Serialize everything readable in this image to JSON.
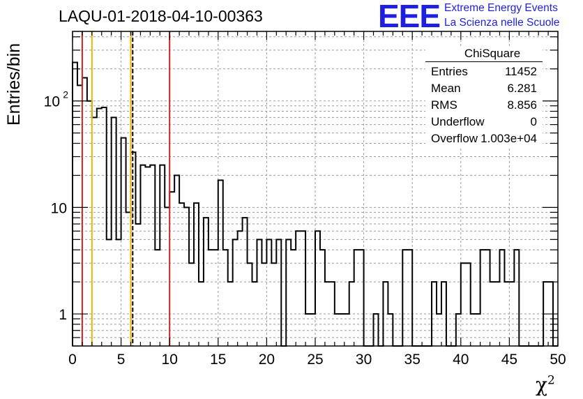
{
  "header": {
    "title": "LAQU-01-2018-04-10-00363",
    "logo_text": "EEE",
    "logo_line1": "Extreme Energy Events",
    "logo_line2": "La Scienza nelle Scuole",
    "logo_color": "#1f1fe0"
  },
  "stats_box": {
    "title": "ChiSquare",
    "rows": [
      {
        "key": "Entries",
        "value": "11452"
      },
      {
        "key": "Mean",
        "value": "6.281"
      },
      {
        "key": "RMS",
        "value": "8.856"
      },
      {
        "key": "Underflow",
        "value": "0"
      },
      {
        "key": "Overflow",
        "value": "1.003e+04"
      }
    ]
  },
  "chart_data": {
    "type": "histogram",
    "title": "LAQU-01-2018-04-10-00363",
    "xlabel": "χ",
    "xlabel_superscript": "2",
    "ylabel": "Entries/bin",
    "xlim": [
      0,
      50
    ],
    "ylim": [
      0.5,
      450
    ],
    "yscale": "log",
    "grid": true,
    "bin_width": 0.5,
    "x_ticks": [
      "0",
      "5",
      "10",
      "15",
      "20",
      "25",
      "30",
      "35",
      "40",
      "45",
      "50"
    ],
    "y_tick_labels": [
      {
        "value": 1,
        "label": "1"
      },
      {
        "value": 10,
        "label": "10"
      },
      {
        "value": 100,
        "label": "10",
        "exponent": "2"
      }
    ],
    "values": [
      230,
      140,
      165,
      100,
      70,
      85,
      87,
      5,
      70,
      5,
      45,
      9,
      33,
      7,
      25,
      24,
      25,
      4,
      25,
      10,
      14,
      20,
      11,
      10,
      3,
      11,
      2,
      8,
      4,
      4,
      18,
      4,
      2,
      5,
      6,
      8,
      3,
      2,
      5,
      3,
      5,
      3,
      5,
      0,
      5,
      4,
      6,
      6,
      1,
      1,
      6,
      4,
      2,
      2,
      1,
      1,
      1,
      2,
      4,
      4,
      0,
      0,
      1,
      0,
      2,
      1,
      0,
      0,
      4,
      4,
      0,
      0,
      0,
      0,
      2,
      1,
      2,
      0,
      0,
      1,
      3,
      3,
      1,
      1,
      4,
      4,
      2,
      2,
      4,
      2,
      2,
      4,
      0,
      0,
      0,
      0,
      0,
      2,
      2,
      0
    ],
    "vertical_lines": [
      {
        "x": 1,
        "color": "#d42020",
        "style": "solid"
      },
      {
        "x": 2,
        "color": "#f0b400",
        "style": "solid"
      },
      {
        "x": 6,
        "color": "#f0b400",
        "style": "solid"
      },
      {
        "x": 6.2,
        "color": "#000000",
        "style": "dashed"
      },
      {
        "x": 10,
        "color": "#d42020",
        "style": "solid"
      }
    ]
  }
}
